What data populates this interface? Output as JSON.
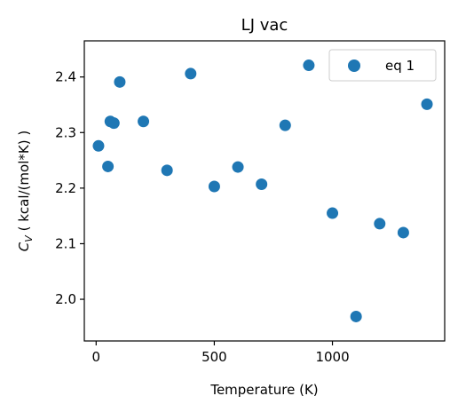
{
  "chart_data": {
    "type": "scatter",
    "title": "LJ vac",
    "xlabel": "Temperature (K)",
    "ylabel_main": "C",
    "ylabel_sub": "V",
    "ylabel_rest": " ( kcal/(mol*K) )",
    "xlim": [
      -50,
      1475
    ],
    "ylim": [
      1.925,
      2.465
    ],
    "xticks": [
      0,
      500,
      1000
    ],
    "xtick_labels": [
      "0",
      "500",
      "1000"
    ],
    "yticks": [
      2.0,
      2.1,
      2.2,
      2.3,
      2.4
    ],
    "ytick_labels": [
      "2.0",
      "2.1",
      "2.2",
      "2.3",
      "2.4"
    ],
    "grid": false,
    "legend_position": "top-right",
    "series": [
      {
        "name": "eq 1",
        "color": "#1f77b4",
        "x": [
          10,
          50,
          60,
          75,
          100,
          200,
          300,
          400,
          500,
          600,
          700,
          800,
          900,
          1000,
          1100,
          1200,
          1300,
          1400
        ],
        "y": [
          2.276,
          2.239,
          2.32,
          2.317,
          2.391,
          2.32,
          2.232,
          2.406,
          2.203,
          2.238,
          2.207,
          2.313,
          2.421,
          2.155,
          1.969,
          2.136,
          2.12,
          2.351
        ]
      }
    ]
  }
}
